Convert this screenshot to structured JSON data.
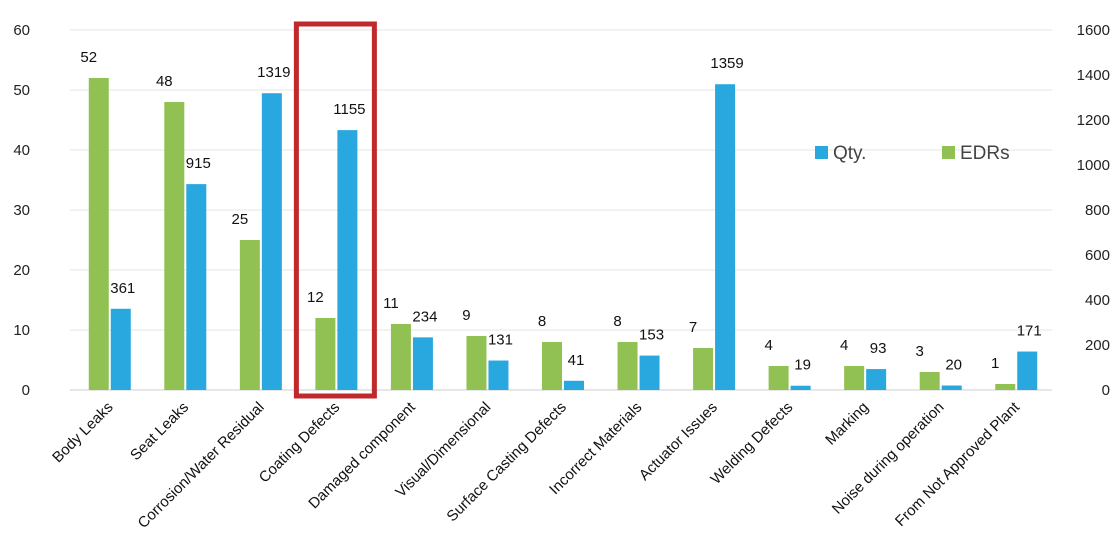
{
  "chart_data": {
    "type": "bar",
    "categories": [
      "Body Leaks",
      "Seat Leaks",
      "Corrosion/Water Residual",
      "Coating Defects",
      "Damaged component",
      "Visual/Dimensional",
      "Surface Casting Defects",
      "Incorrect Materials",
      "Actuator Issues",
      "Welding Defects",
      "Marking",
      "Noise during operation",
      "From Not Approved Plant"
    ],
    "series": [
      {
        "name": "EDRs",
        "axis": "left",
        "color": "#92c153",
        "values": [
          52,
          48,
          25,
          12,
          11,
          9,
          8,
          8,
          7,
          4,
          4,
          3,
          1
        ]
      },
      {
        "name": "Qty.",
        "axis": "right",
        "color": "#29a8df",
        "values": [
          361,
          915,
          1319,
          1155,
          234,
          131,
          41,
          153,
          1359,
          19,
          93,
          20,
          171
        ]
      }
    ],
    "y_left": {
      "min": 0,
      "max": 60,
      "ticks": [
        0,
        10,
        20,
        30,
        40,
        50,
        60
      ]
    },
    "y_right": {
      "min": 0,
      "max": 1600,
      "ticks": [
        0,
        200,
        400,
        600,
        800,
        1000,
        1200,
        1400,
        1600
      ]
    },
    "grid": true,
    "grid_color": "#e6e6e6",
    "legend": {
      "placement": "right",
      "order": [
        "Qty.",
        "EDRs"
      ]
    },
    "highlight": {
      "category": "Coating Defects",
      "color": "#c0292b"
    },
    "data_labels": true
  }
}
